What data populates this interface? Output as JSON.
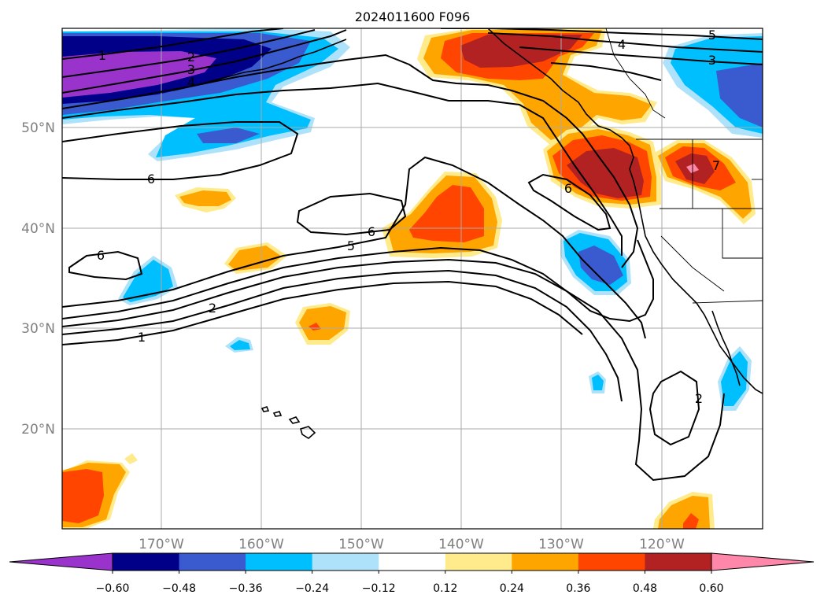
{
  "title": "2024011600 F096",
  "lon_labels": [
    "170°W",
    "160°W",
    "150°W",
    "140°W",
    "130°W",
    "120°W"
  ],
  "lat_labels": [
    "50°N",
    "40°N",
    "30°N",
    "20°N"
  ],
  "colorbar": {
    "ticks": [
      "−0.60",
      "−0.48",
      "−0.36",
      "−0.24",
      "−0.12",
      "0.12",
      "0.24",
      "0.36",
      "0.48",
      "0.60"
    ],
    "colors": [
      "#9933cc",
      "#000088",
      "#3a5bd0",
      "#00bfff",
      "#aee2fa",
      "#ffffff",
      "#ffea8c",
      "#ffa500",
      "#ff4500",
      "#b22222",
      "#ff88aa"
    ]
  },
  "contour_labels": [
    {
      "id": "c1-west",
      "text": "1"
    },
    {
      "id": "c2-west",
      "text": "2"
    },
    {
      "id": "c3-west",
      "text": "3"
    },
    {
      "id": "c4-west",
      "text": "4"
    },
    {
      "id": "c6-west",
      "text": "6"
    },
    {
      "id": "c6-midwest",
      "text": "6"
    },
    {
      "id": "c6-center",
      "text": "6"
    },
    {
      "id": "c5-center",
      "text": "5"
    },
    {
      "id": "c2-south",
      "text": "2"
    },
    {
      "id": "c1-south",
      "text": "1"
    },
    {
      "id": "c5-ne",
      "text": "5"
    },
    {
      "id": "c4-ne",
      "text": "4"
    },
    {
      "id": "c3-ne",
      "text": "3"
    },
    {
      "id": "c6-east",
      "text": "6"
    },
    {
      "id": "c7-east",
      "text": "7"
    },
    {
      "id": "c2-se",
      "text": "2"
    }
  ],
  "colors": {
    "grid": "#aaaaaa",
    "contour": "#000000",
    "tick_text": "#808080"
  }
}
